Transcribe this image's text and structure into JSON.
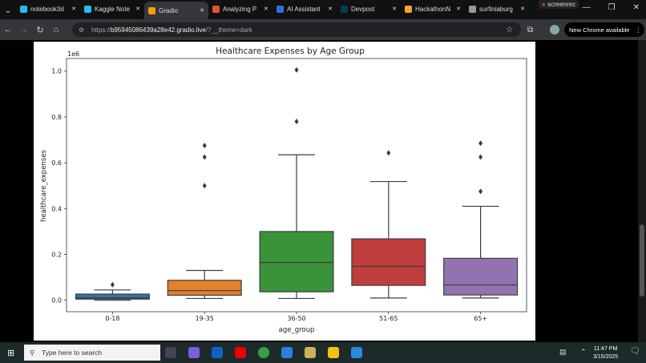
{
  "browser": {
    "tabs": [
      {
        "label": "notebook3d",
        "icon": "kaggle-icon",
        "active": false
      },
      {
        "label": "Kaggle Note",
        "icon": "kaggle-icon",
        "active": false
      },
      {
        "label": "Gradio",
        "icon": "gradio-icon",
        "active": true
      },
      {
        "label": "Analyzing P",
        "icon": "bug-icon",
        "active": false
      },
      {
        "label": "AI Assistant",
        "icon": "ai-icon",
        "active": false
      },
      {
        "label": "Devpost",
        "icon": "devpost-icon",
        "active": false
      },
      {
        "label": "HackathonN",
        "icon": "infinity-icon",
        "active": false
      },
      {
        "label": "surfiniaburg",
        "icon": "github-icon",
        "active": false
      }
    ],
    "recorder": "screenrec",
    "url_prefix": "https://",
    "url_host": "b95945086439a28e42.gradio.live",
    "url_rest": "/?__theme=dark",
    "new_chrome": "New Chrome available"
  },
  "chart_data": {
    "type": "box",
    "title": "Healthcare Expenses by Age Group",
    "xlabel": "age_group",
    "ylabel": "healthcare_expenses",
    "offset_label": "1e6",
    "ylim": [
      -0.05,
      1.055
    ],
    "yticks": [
      "0.0",
      "0.2",
      "0.4",
      "0.6",
      "0.8",
      "1.0"
    ],
    "categories": [
      "0-18",
      "19-35",
      "36-50",
      "51-65",
      "65+"
    ],
    "colors": [
      "#3274a1",
      "#e1812c",
      "#3a923a",
      "#c03d3e",
      "#9372b2"
    ],
    "boxes": [
      {
        "whislo": 0.0,
        "q1": 0.005,
        "med": 0.01,
        "q3": 0.027,
        "whishi": 0.045,
        "fliers": [
          0.068
        ]
      },
      {
        "whislo": 0.008,
        "q1": 0.022,
        "med": 0.042,
        "q3": 0.087,
        "whishi": 0.13,
        "fliers": [
          0.5,
          0.625,
          0.675
        ]
      },
      {
        "whislo": 0.008,
        "q1": 0.037,
        "med": 0.165,
        "q3": 0.3,
        "whishi": 0.635,
        "fliers": [
          0.78,
          1.005
        ]
      },
      {
        "whislo": 0.01,
        "q1": 0.065,
        "med": 0.148,
        "q3": 0.268,
        "whishi": 0.518,
        "fliers": [
          0.643
        ]
      },
      {
        "whislo": 0.01,
        "q1": 0.023,
        "med": 0.067,
        "q3": 0.183,
        "whishi": 0.41,
        "fliers": [
          0.475,
          0.625,
          0.685
        ]
      }
    ]
  },
  "taskbar": {
    "search_placeholder": "Type here to search",
    "time": "11:47 PM",
    "date": "3/15/2025"
  }
}
